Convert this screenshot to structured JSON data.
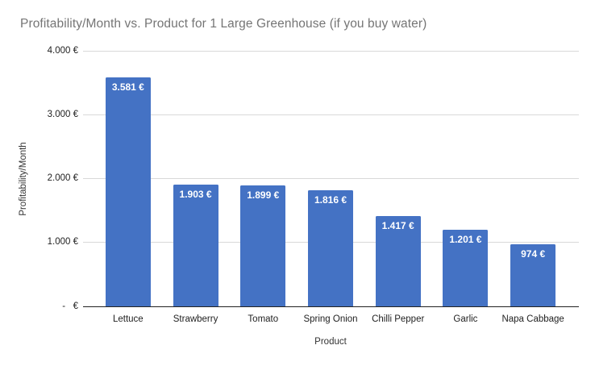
{
  "chart_data": {
    "type": "bar",
    "title": "Profitability/Month vs. Product for 1 Large Greenhouse (if you buy water)",
    "xlabel": "Product",
    "ylabel": "Profitability/Month",
    "categories": [
      "Lettuce",
      "Strawberry",
      "Tomato",
      "Spring Onion",
      "Chilli Pepper",
      "Garlic",
      "Napa Cabbage"
    ],
    "values": [
      3581,
      1903,
      1899,
      1816,
      1417,
      1201,
      974
    ],
    "value_labels": [
      "3.581 €",
      "1.903 €",
      "1.899 €",
      "1.816 €",
      "1.417 €",
      "1.201 €",
      "974 €"
    ],
    "ylim": [
      0,
      4000
    ],
    "yticks": [
      {
        "value": 0,
        "label": "-   €"
      },
      {
        "value": 1000,
        "label": "1.000 €"
      },
      {
        "value": 2000,
        "label": "2.000 €"
      },
      {
        "value": 3000,
        "label": "3.000 €"
      },
      {
        "value": 4000,
        "label": "4.000 €"
      }
    ],
    "grid": true,
    "legend": "none",
    "data_labels_position": "inside-top",
    "colors": {
      "bar": "#4472c4",
      "title_text": "#757575",
      "tick_text": "#222222",
      "axis_title_text": "#333333",
      "gridline": "#d9d9d9",
      "axis_line": "#212121",
      "data_label_text": "#ffffff",
      "background": "#ffffff"
    }
  }
}
